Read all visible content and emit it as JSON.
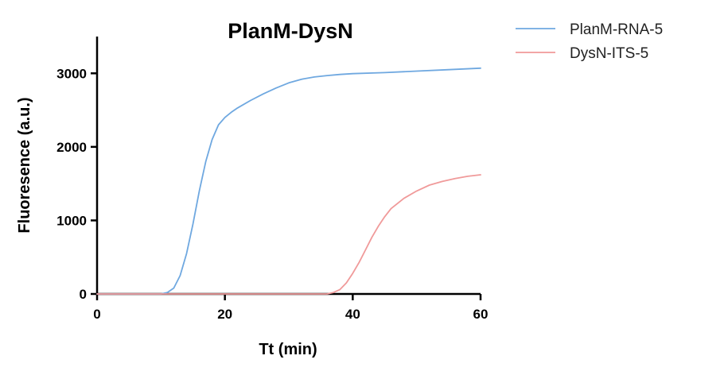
{
  "chart_data": {
    "type": "line",
    "title": "PlanM-DysN",
    "xlabel": "Tt (min)",
    "ylabel": "Fluoresence (a.u.)",
    "xlim": [
      0,
      60
    ],
    "ylim": [
      0,
      3500
    ],
    "xticks": [
      0,
      20,
      40,
      60
    ],
    "yticks": [
      0,
      1000,
      2000,
      3000
    ],
    "xtick_labels": [
      "0",
      "20",
      "40",
      "60"
    ],
    "ytick_labels": [
      "0",
      "1000",
      "2000",
      "3000"
    ],
    "grid": false,
    "legend_position": "top-right, outside plot",
    "series": [
      {
        "name": "PlanM-RNA-5",
        "color": "#6fa8e0",
        "x": [
          0,
          10,
          11,
          12,
          13,
          14,
          15,
          16,
          17,
          18,
          19,
          20,
          21,
          22,
          24,
          26,
          28,
          30,
          32,
          34,
          36,
          38,
          40,
          45,
          50,
          55,
          60
        ],
        "y": [
          0,
          0,
          20,
          80,
          250,
          550,
          950,
          1400,
          1800,
          2100,
          2300,
          2400,
          2470,
          2530,
          2630,
          2720,
          2800,
          2870,
          2920,
          2950,
          2970,
          2985,
          2995,
          3010,
          3030,
          3050,
          3070
        ]
      },
      {
        "name": "DysN-ITS-5",
        "color": "#f09a9a",
        "x": [
          0,
          36,
          37,
          38,
          39,
          40,
          41,
          42,
          43,
          44,
          45,
          46,
          48,
          50,
          52,
          54,
          56,
          58,
          60
        ],
        "y": [
          0,
          0,
          20,
          60,
          150,
          280,
          430,
          600,
          770,
          920,
          1050,
          1160,
          1300,
          1400,
          1480,
          1530,
          1570,
          1600,
          1620
        ]
      }
    ]
  }
}
